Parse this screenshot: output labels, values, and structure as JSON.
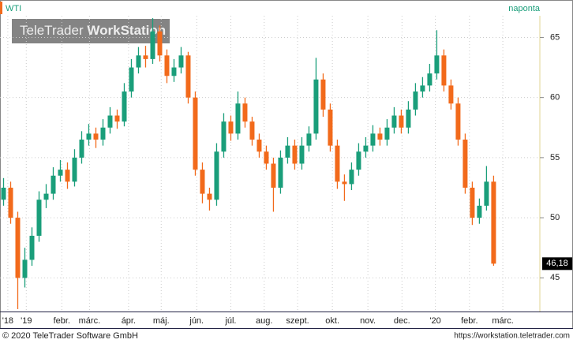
{
  "chart_data": {
    "type": "candlestick",
    "title": "WTI",
    "period": "naponta",
    "watermark": [
      "TeleTrader",
      "WorkStation"
    ],
    "footer_left": "© 2020 TeleTrader Software GmbH",
    "footer_right": "https://workstation.teletrader.com",
    "up_color": "#1a9e7a",
    "down_color": "#f26a1b",
    "grid": true,
    "ylim": [
      42.2,
      66.8
    ],
    "yticks": [
      45,
      50,
      55,
      60,
      65
    ],
    "xlim": [
      -0.5,
      75.4
    ],
    "xticks": [
      {
        "value": 0.6,
        "label": "'18"
      },
      {
        "value": 3.2,
        "label": "'19"
      },
      {
        "value": 8.2,
        "label": "febr."
      },
      {
        "value": 12.1,
        "label": "márc."
      },
      {
        "value": 17.6,
        "label": "ápr."
      },
      {
        "value": 22.2,
        "label": "máj."
      },
      {
        "value": 27.2,
        "label": "jún."
      },
      {
        "value": 32,
        "label": "júl."
      },
      {
        "value": 36.7,
        "label": "aug."
      },
      {
        "value": 41.4,
        "label": "szept."
      },
      {
        "value": 46.3,
        "label": "okt."
      },
      {
        "value": 51.3,
        "label": "nov."
      },
      {
        "value": 56.1,
        "label": "dec."
      },
      {
        "value": 60.8,
        "label": "'20"
      },
      {
        "value": 65.6,
        "label": "febr."
      },
      {
        "value": 70.3,
        "label": "márc."
      }
    ],
    "last": {
      "value": 46.18,
      "label": "46,18"
    },
    "open": [
      51.5,
      52.5,
      50,
      45,
      46.5,
      48.5,
      51.5,
      52,
      53.5,
      54,
      53,
      55,
      56.5,
      57,
      56.5,
      57.5,
      58.5,
      58,
      60.5,
      62.5,
      63.5,
      63.2,
      65.5,
      63.5,
      61.8,
      62.5,
      63.5,
      60,
      54,
      52,
      51.5,
      55.5,
      58,
      57,
      59.5,
      58,
      56.5,
      55.5,
      54.5,
      52.5,
      55,
      56,
      54.5,
      56,
      57,
      61.5,
      59,
      56,
      53,
      52.8,
      54,
      55.5,
      56,
      57,
      56.5,
      57.5,
      58.5,
      57.5,
      59,
      60.5,
      61,
      62,
      63.5,
      61,
      59.5,
      56.5,
      52.5,
      50,
      51,
      53
    ],
    "high": [
      53.3,
      53,
      50.5,
      47.5,
      49.2,
      52.2,
      52.8,
      54.2,
      54.8,
      54.6,
      55.7,
      57.2,
      57.8,
      57.5,
      58.2,
      59.2,
      59,
      61.2,
      63.2,
      64.2,
      64.3,
      66.6,
      66,
      64,
      63.2,
      64.2,
      63.8,
      60.5,
      54.6,
      52.5,
      56.2,
      58.7,
      58.5,
      60.5,
      60,
      58.4,
      57,
      56,
      55,
      55.6,
      56.7,
      56.5,
      56.7,
      57.6,
      63.3,
      62,
      59.5,
      56.5,
      53.6,
      54.6,
      56.2,
      56.7,
      57.7,
      57.5,
      58.2,
      59.2,
      59,
      59.7,
      61.2,
      61.7,
      62.8,
      65.6,
      64,
      61.5,
      60,
      57,
      53,
      51.6,
      54.3,
      53.5
    ],
    "low": [
      51,
      49.5,
      42.4,
      44.2,
      46,
      48,
      50.8,
      51.5,
      53,
      52.4,
      52.6,
      54.5,
      56,
      55.8,
      56,
      57,
      57.4,
      57.6,
      60,
      62,
      62.5,
      62.8,
      63,
      61.2,
      61.3,
      62,
      59.5,
      53.5,
      51.2,
      50.6,
      51,
      55,
      56.4,
      56.5,
      57.5,
      56,
      55,
      54,
      50.5,
      52,
      54.5,
      54,
      54,
      55.5,
      56.5,
      58.4,
      55.5,
      52.4,
      51.4,
      52.3,
      53.5,
      55,
      55.5,
      56,
      56,
      57,
      57,
      57,
      58.5,
      60,
      60.5,
      61.5,
      60.5,
      59,
      56,
      52,
      49.4,
      49.5,
      50.6,
      46
    ],
    "close": [
      52.5,
      50,
      45,
      46.5,
      48.5,
      51.5,
      52,
      53.5,
      54,
      53,
      55,
      56.5,
      57,
      56.5,
      57.5,
      58.5,
      58,
      60.5,
      62.5,
      63.5,
      63.2,
      65.5,
      63.5,
      61.8,
      62.5,
      63.5,
      60,
      54,
      52,
      51.5,
      55.5,
      58,
      57,
      59.5,
      58,
      56.5,
      55.5,
      54.5,
      52.5,
      55,
      56,
      54.5,
      56,
      57,
      61.5,
      59,
      56,
      53,
      52.8,
      54,
      55.5,
      56,
      57,
      56.5,
      57.5,
      58.5,
      57.5,
      59,
      60.5,
      61,
      62,
      63.5,
      61,
      59.5,
      56.5,
      52.5,
      50,
      51,
      53,
      46.18
    ]
  }
}
